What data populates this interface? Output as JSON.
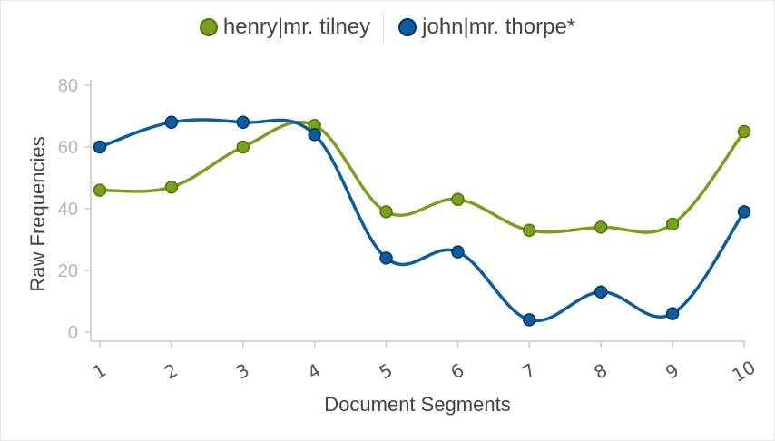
{
  "chart_data": {
    "type": "line",
    "title": "",
    "xlabel": "Document Segments",
    "ylabel": "Raw Frequencies",
    "categories": [
      "1",
      "2",
      "3",
      "4",
      "5",
      "6",
      "7",
      "8",
      "9",
      "10"
    ],
    "ylim": [
      0,
      80
    ],
    "yticks": [
      0,
      20,
      40,
      60,
      80
    ],
    "grid": false,
    "legend_position": "top-center",
    "series": [
      {
        "name": "henry|mr. tilney",
        "color": "#7a9e1f",
        "values": [
          46,
          47,
          60,
          67,
          39,
          43,
          33,
          34,
          35,
          65
        ]
      },
      {
        "name": "john|mr. thorpe*",
        "color": "#0e5c99",
        "values": [
          60,
          68,
          68,
          64,
          24,
          26,
          4,
          13,
          6,
          39
        ]
      }
    ]
  }
}
